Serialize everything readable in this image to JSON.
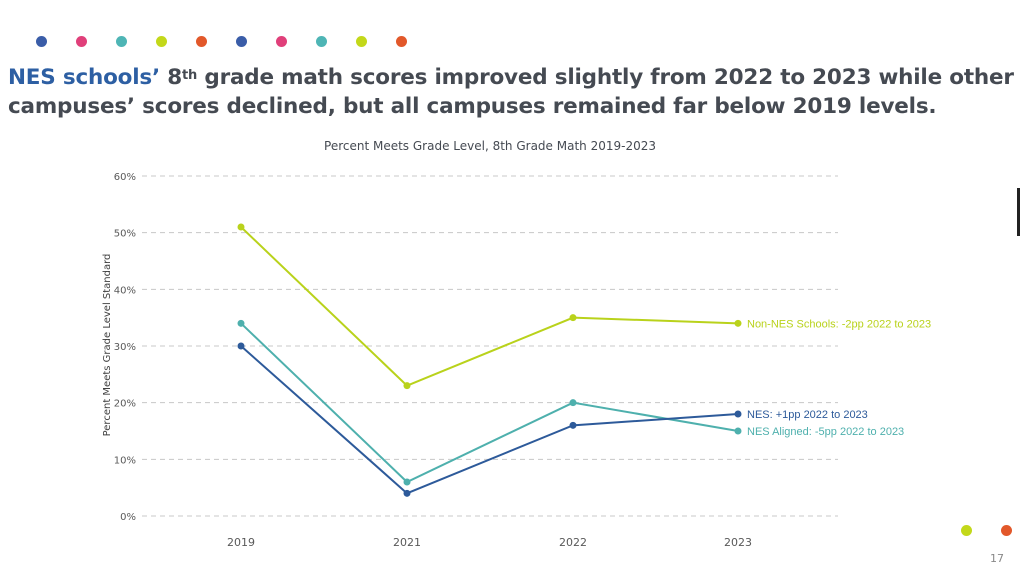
{
  "decor": {
    "top_dots": [
      "#3a5da8",
      "#e03f7a",
      "#4eb5b5",
      "#c3d81a",
      "#e2582a",
      "#3a5da8",
      "#e03f7a",
      "#4eb5b5",
      "#c3d81a",
      "#e2582a"
    ],
    "corner_dots": [
      "#c3d81a",
      "#e2582a"
    ]
  },
  "headline": {
    "accent": "NES schools’",
    "part1": " 8",
    "sup": "th",
    "part2": " grade math scores improved slightly from 2022 to 2023 while other campuses’ scores declined, but all campuses remained far below 2019 levels."
  },
  "page_number": "17",
  "chart_data": {
    "type": "line",
    "title": "Percent Meets Grade Level, 8th Grade Math 2019-2023",
    "xlabel": "",
    "ylabel": "Percent Meets Grade Level Standard",
    "categories": [
      "2019",
      "2021",
      "2022",
      "2023"
    ],
    "ylim": [
      0,
      60
    ],
    "yticks": [
      0,
      10,
      20,
      30,
      40,
      50,
      60
    ],
    "ytick_labels": [
      "0%",
      "10%",
      "20%",
      "30%",
      "40%",
      "50%",
      "60%"
    ],
    "grid": true,
    "legend": "inline-right",
    "series": [
      {
        "name": "Non-NES Schools",
        "values": [
          51,
          23,
          35,
          34
        ],
        "color": "#b9d21b",
        "label": "Non-NES Schools: -2pp 2022 to 2023"
      },
      {
        "name": "NES Aligned",
        "values": [
          34,
          6,
          20,
          15
        ],
        "color": "#4eb0ad",
        "label": "NES Aligned: -5pp 2022 to 2023"
      },
      {
        "name": "NES",
        "values": [
          30,
          4,
          16,
          18
        ],
        "color": "#2d5a9a",
        "label": "NES: +1pp 2022 to 2023"
      }
    ]
  }
}
